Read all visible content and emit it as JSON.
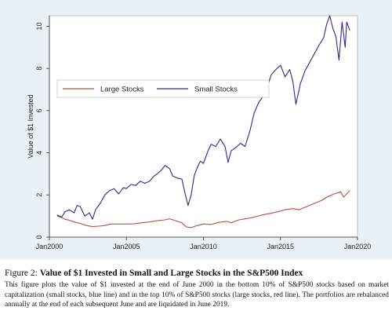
{
  "figure": {
    "caption_label": "Figure 2:",
    "caption_title": "Value of $1 Invested in Small and Large Stocks in the S&P500 Index",
    "caption_text": "This figure plots the value of $1 invested at the end of June 2000 in the bottom 10% of S&P500 stocks based on market capitalization (small stocks, blue line) and in the top 10% of S&P500 stocks (large stocks, red line). The portfolios are rebalanced annually at the end of each subsequent June and are liquidated in June 2019."
  },
  "chart_data": {
    "type": "line",
    "title": "",
    "xlabel": "",
    "ylabel": "Value of $1 Invested",
    "xlim": [
      2000,
      2020
    ],
    "ylim": [
      0,
      10.5
    ],
    "x_ticks": [
      2000,
      2005,
      2010,
      2015,
      2020
    ],
    "x_tick_labels": [
      "Jan2000",
      "Jan2005",
      "Jan2010",
      "Jan2015",
      "Jan2020"
    ],
    "y_ticks": [
      0,
      2,
      4,
      6,
      8,
      10
    ],
    "y_tick_labels": [
      "0",
      "2",
      "4",
      "6",
      "8",
      "10"
    ],
    "grid": false,
    "legend_position": "top-left",
    "series": [
      {
        "name": "Large Stocks",
        "color": "#b5523b",
        "x": [
          2000.5,
          2000.8,
          2001.0,
          2001.3,
          2001.7,
          2002.0,
          2002.4,
          2002.8,
          2003.2,
          2003.6,
          2004.0,
          2004.5,
          2005.0,
          2005.5,
          2006.0,
          2006.5,
          2007.0,
          2007.5,
          2007.8,
          2008.2,
          2008.6,
          2008.9,
          2009.2,
          2009.6,
          2010.0,
          2010.5,
          2011.0,
          2011.5,
          2011.8,
          2012.3,
          2012.8,
          2013.3,
          2013.8,
          2014.3,
          2014.8,
          2015.3,
          2015.8,
          2016.2,
          2016.7,
          2017.2,
          2017.7,
          2018.0,
          2018.5,
          2018.9,
          2019.1,
          2019.3,
          2019.5
        ],
        "values": [
          1.0,
          0.93,
          0.85,
          0.8,
          0.7,
          0.65,
          0.55,
          0.5,
          0.52,
          0.55,
          0.62,
          0.62,
          0.62,
          0.63,
          0.68,
          0.72,
          0.78,
          0.82,
          0.87,
          0.78,
          0.68,
          0.48,
          0.45,
          0.55,
          0.62,
          0.6,
          0.7,
          0.75,
          0.68,
          0.82,
          0.88,
          0.95,
          1.05,
          1.12,
          1.2,
          1.3,
          1.35,
          1.3,
          1.45,
          1.6,
          1.75,
          1.9,
          2.05,
          2.15,
          1.9,
          2.05,
          2.2
        ]
      },
      {
        "name": "Small Stocks",
        "color": "#2e2a8f",
        "x": [
          2000.5,
          2000.8,
          2001.0,
          2001.3,
          2001.6,
          2001.8,
          2002.0,
          2002.3,
          2002.6,
          2002.8,
          2003.0,
          2003.3,
          2003.6,
          2003.9,
          2004.2,
          2004.5,
          2004.8,
          2005.0,
          2005.3,
          2005.6,
          2005.9,
          2006.2,
          2006.5,
          2006.8,
          2007.0,
          2007.3,
          2007.5,
          2007.8,
          2008.0,
          2008.3,
          2008.6,
          2008.8,
          2009.0,
          2009.2,
          2009.4,
          2009.6,
          2009.8,
          2010.0,
          2010.3,
          2010.5,
          2010.8,
          2011.1,
          2011.4,
          2011.6,
          2011.8,
          2012.1,
          2012.4,
          2012.7,
          2013.0,
          2013.3,
          2013.6,
          2013.9,
          2014.2,
          2014.4,
          2014.7,
          2015.0,
          2015.3,
          2015.6,
          2015.8,
          2016.0,
          2016.3,
          2016.6,
          2016.9,
          2017.2,
          2017.5,
          2017.8,
          2018.0,
          2018.2,
          2018.4,
          2018.6,
          2018.8,
          2019.0,
          2019.1,
          2019.2,
          2019.3,
          2019.4,
          2019.5
        ],
        "values": [
          1.05,
          0.95,
          1.2,
          1.3,
          1.15,
          1.5,
          1.45,
          1.0,
          1.15,
          0.85,
          1.3,
          1.6,
          2.0,
          2.2,
          2.3,
          2.05,
          2.35,
          2.3,
          2.5,
          2.45,
          2.65,
          2.55,
          2.65,
          2.9,
          3.0,
          3.2,
          3.4,
          3.25,
          2.9,
          2.8,
          2.75,
          2.1,
          1.5,
          2.0,
          2.9,
          3.3,
          3.6,
          3.5,
          4.1,
          4.4,
          4.3,
          4.65,
          4.3,
          3.55,
          4.1,
          4.25,
          4.45,
          4.3,
          5.0,
          5.9,
          6.4,
          6.7,
          7.25,
          7.7,
          7.95,
          8.15,
          7.6,
          7.95,
          7.4,
          6.3,
          7.3,
          7.9,
          8.3,
          8.7,
          9.1,
          9.45,
          10.1,
          10.5,
          9.9,
          9.5,
          8.4,
          10.2,
          9.6,
          9.0,
          10.2,
          10.0,
          9.8
        ]
      }
    ]
  }
}
